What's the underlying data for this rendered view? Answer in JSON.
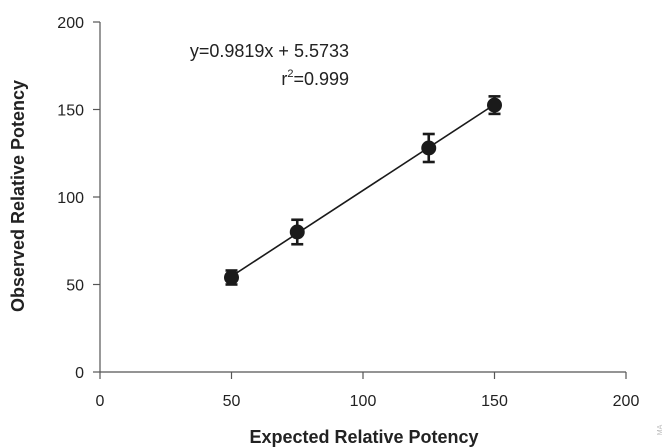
{
  "chart_data": {
    "type": "scatter",
    "title": "",
    "xlabel": "Expected Relative Potency",
    "ylabel": "Observed Relative Potency",
    "xlim": [
      0,
      200
    ],
    "ylim": [
      0,
      200
    ],
    "xticks": [
      "0",
      "50",
      "100",
      "150",
      "200"
    ],
    "yticks": [
      "0",
      "50",
      "100",
      "150",
      "200"
    ],
    "grid": false,
    "series": [
      {
        "points": [
          {
            "x": 50,
            "y": 54,
            "err": 4
          },
          {
            "x": 75,
            "y": 80,
            "err": 7
          },
          {
            "x": 125,
            "y": 128,
            "err": 8
          },
          {
            "x": 150,
            "y": 152.5,
            "err": 5
          }
        ],
        "color": "#1a1a1a"
      }
    ],
    "fit": {
      "slope": 0.9819,
      "intercept": 5.5733,
      "x_range": [
        50,
        150
      ],
      "color": "#1a1a1a"
    },
    "annotations": {
      "equation": "y=0.9819x + 5.5733",
      "r2_prefix": "r",
      "r2_sup": "2",
      "r2_value": "=0.999"
    },
    "watermark": "MA"
  }
}
